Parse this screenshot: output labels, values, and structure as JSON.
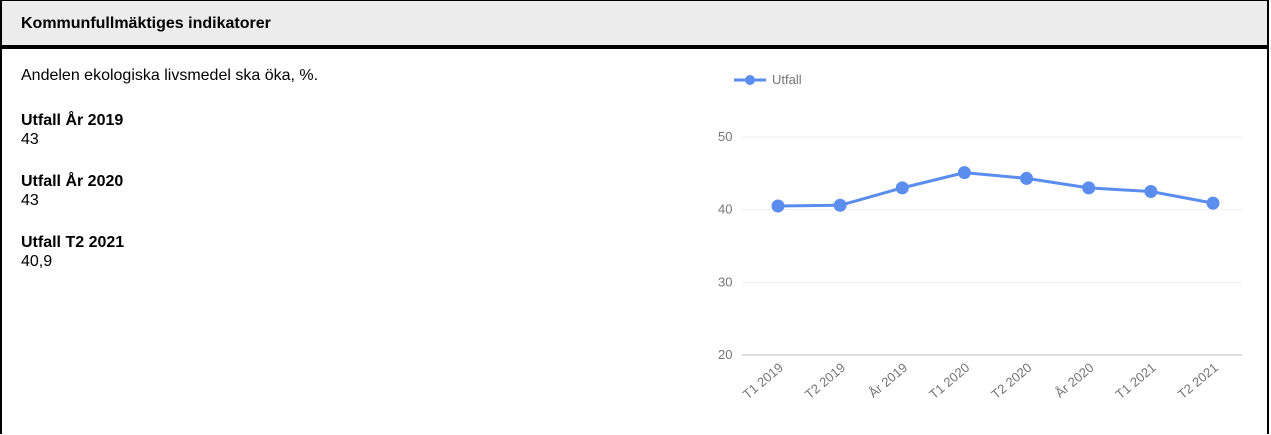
{
  "header": {
    "title": "Kommunfullmäktiges indikatorer"
  },
  "indicator": {
    "description": "Andelen ekologiska livsmedel ska öka, %.",
    "items": [
      {
        "label": "Utfall År 2019",
        "value": "43"
      },
      {
        "label": "Utfall År 2020",
        "value": "43"
      },
      {
        "label": "Utfall T2 2021",
        "value": "40,9"
      }
    ]
  },
  "chart_data": {
    "type": "line",
    "categories": [
      "T1 2019",
      "T2 2019",
      "År 2019",
      "T1 2020",
      "T2 2020",
      "År 2020",
      "T1 2021",
      "T2 2021"
    ],
    "series": [
      {
        "name": "Utfall",
        "values": [
          40.5,
          40.6,
          43,
          45.1,
          44.3,
          43,
          42.5,
          40.9
        ],
        "color": "#5b8def"
      }
    ],
    "yticks": [
      "20",
      "30",
      "40",
      "50"
    ],
    "ylim": [
      20,
      50
    ],
    "grid": true,
    "legend": "top-left"
  }
}
